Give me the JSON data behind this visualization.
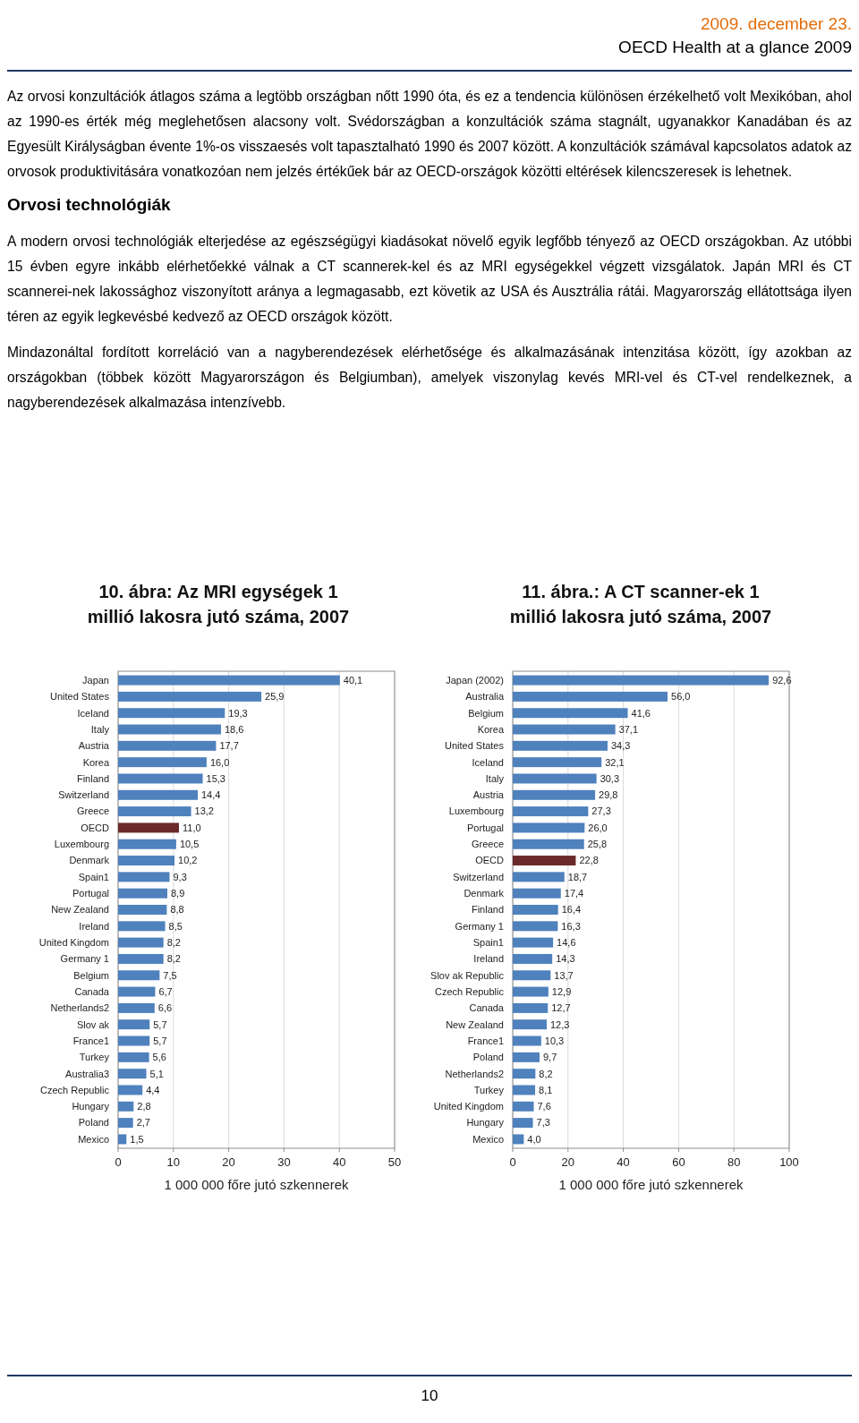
{
  "chart_data": [
    {
      "type": "other",
      "annotations": [
        "2009. december 23.",
        "OECD Health at a glance 2009",
        "Az orvosi konzultációk átlagos száma a legtöbb országban nőtt 1990 óta, és ez a tendencia különösen érzékelhető volt Mexikóban, ahol az 1990-es érték még meglehetősen alacsony volt. Svédországban a konzultációk száma stagnált, ugyanakkor Kanadában és az Egyesült Királyságban évente 1%-os visszaesés volt tapasztalható 1990 és 2007 között. A konzultációk számával kapcsolatos adatok az orvosok produktivitására vonatkozóan nem jelzés értékűek bár az OECD-országok közötti eltérések kilencszeresek is lehetnek.",
        "Orvosi technológiák",
        "A modern orvosi technológiák elterjedése az egészségügyi kiadásokat növelő egyik legfőbb tényező az OECD országokban. Az utóbbi 15 évben egyre inkább elérhetőekké válnak a CT scannerek-kel és az MRI egységekkel végzett vizsgálatok. Japán MRI és CT scannerei-nek lakossághoz viszonyított aránya a legmagasabb, ezt követik az USA és Ausztrália rátái. Magyarország ellátottsága ilyen téren az egyik legkevésbé kedvező az OECD országok között.",
        "Mindazonáltal fordított korreláció van a nagyberendezések elérhetősége és alkalmazásának intenzitása között, így azokban az országokban (többek között Magyarországon és Belgiumban), amelyek viszonylag kevés MRI-vel és CT-vel rendelkeznek, a nagyberendezések alkalmazása intenzívebb.",
        "10"
      ]
    },
    {
      "type": "bar",
      "orientation": "horizontal",
      "title": "10. ábra: Az MRI egységek 1 millió lakosra jutó száma, 2007",
      "xlabel": "1 000 000 főre jutó szkennerek",
      "categories": [
        "Japan",
        "United States",
        "Iceland",
        "Italy",
        "Austria",
        "Korea",
        "Finland",
        "Switzerland",
        "Greece",
        "OECD",
        "Luxembourg",
        "Denmark",
        "Spain1",
        "Portugal",
        "New Zealand",
        "Ireland",
        "United Kingdom",
        "Germany 1",
        "Belgium",
        "Canada",
        "Netherlands2",
        "Slov ak",
        "France1",
        "Turkey",
        "Australia3",
        "Czech Republic",
        "Hungary",
        "Poland",
        "Mexico"
      ],
      "values": [
        40.1,
        25.9,
        19.3,
        18.6,
        17.7,
        16.0,
        15.3,
        14.4,
        13.2,
        11.0,
        10.5,
        10.2,
        9.3,
        8.9,
        8.8,
        8.5,
        8.2,
        8.2,
        7.5,
        6.7,
        6.6,
        5.7,
        5.7,
        5.6,
        5.1,
        4.4,
        2.8,
        2.7,
        1.5
      ],
      "value_labels": [
        "40,1",
        "25,9",
        "19,3",
        "18,6",
        "17,7",
        "16,0",
        "15,3",
        "14,4",
        "13,2",
        "11,0",
        "10,5",
        "10,2",
        "9,3",
        "8,9",
        "8,8",
        "8,5",
        "8,2",
        "8,2",
        "7,5",
        "6,7",
        "6,6",
        "5,7",
        "5,7",
        "5,6",
        "5,1",
        "4,4",
        "2,8",
        "2,7",
        "1,5"
      ],
      "colors": [
        "#4f81bd",
        "#4f81bd",
        "#4f81bd",
        "#4f81bd",
        "#4f81bd",
        "#4f81bd",
        "#4f81bd",
        "#4f81bd",
        "#4f81bd",
        "#6b2a2a",
        "#4f81bd",
        "#4f81bd",
        "#4f81bd",
        "#4f81bd",
        "#4f81bd",
        "#4f81bd",
        "#4f81bd",
        "#4f81bd",
        "#4f81bd",
        "#4f81bd",
        "#4f81bd",
        "#4f81bd",
        "#4f81bd",
        "#4f81bd",
        "#4f81bd",
        "#4f81bd",
        "#4f81bd",
        "#4f81bd",
        "#4f81bd"
      ],
      "xlim": [
        0,
        50
      ],
      "xticks": [
        0,
        10,
        20,
        30,
        40,
        50
      ],
      "grid": "x"
    },
    {
      "type": "bar",
      "orientation": "horizontal",
      "title": "11. ábra.: A CT scanner-ek 1 millió lakosra jutó száma, 2007",
      "xlabel": "1 000 000 főre jutó szkennerek",
      "categories": [
        "Japan (2002)",
        "Australia",
        "Belgium",
        "Korea",
        "United States",
        "Iceland",
        "Italy",
        "Austria",
        "Luxembourg",
        "Portugal",
        "Greece",
        "OECD",
        "Switzerland",
        "Denmark",
        "Finland",
        "Germany 1",
        "Spain1",
        "Ireland",
        "Slov ak Republic",
        "Czech Republic",
        "Canada",
        "New Zealand",
        "France1",
        "Poland",
        "Netherlands2",
        "Turkey",
        "United Kingdom",
        "Hungary",
        "Mexico"
      ],
      "values": [
        92.6,
        56.0,
        41.6,
        37.1,
        34.3,
        32.1,
        30.3,
        29.8,
        27.3,
        26.0,
        25.8,
        22.8,
        18.7,
        17.4,
        16.4,
        16.3,
        14.6,
        14.3,
        13.7,
        12.9,
        12.7,
        12.3,
        10.3,
        9.7,
        8.2,
        8.1,
        7.6,
        7.3,
        4.0
      ],
      "value_labels": [
        "92,6",
        "56,0",
        "41,6",
        "37,1",
        "34,3",
        "32,1",
        "30,3",
        "29,8",
        "27,3",
        "26,0",
        "25,8",
        "22,8",
        "18,7",
        "17,4",
        "16,4",
        "16,3",
        "14,6",
        "14,3",
        "13,7",
        "12,9",
        "12,7",
        "12,3",
        "10,3",
        "9,7",
        "8,2",
        "8,1",
        "7,6",
        "7,3",
        "4,0"
      ],
      "colors": [
        "#4f81bd",
        "#4f81bd",
        "#4f81bd",
        "#4f81bd",
        "#4f81bd",
        "#4f81bd",
        "#4f81bd",
        "#4f81bd",
        "#4f81bd",
        "#4f81bd",
        "#4f81bd",
        "#6b2a2a",
        "#4f81bd",
        "#4f81bd",
        "#4f81bd",
        "#4f81bd",
        "#4f81bd",
        "#4f81bd",
        "#4f81bd",
        "#4f81bd",
        "#4f81bd",
        "#4f81bd",
        "#4f81bd",
        "#4f81bd",
        "#4f81bd",
        "#4f81bd",
        "#4f81bd",
        "#4f81bd",
        "#4f81bd"
      ],
      "xlim": [
        0,
        100
      ],
      "xticks": [
        0,
        20,
        40,
        60,
        80,
        100
      ],
      "grid": "x"
    }
  ]
}
